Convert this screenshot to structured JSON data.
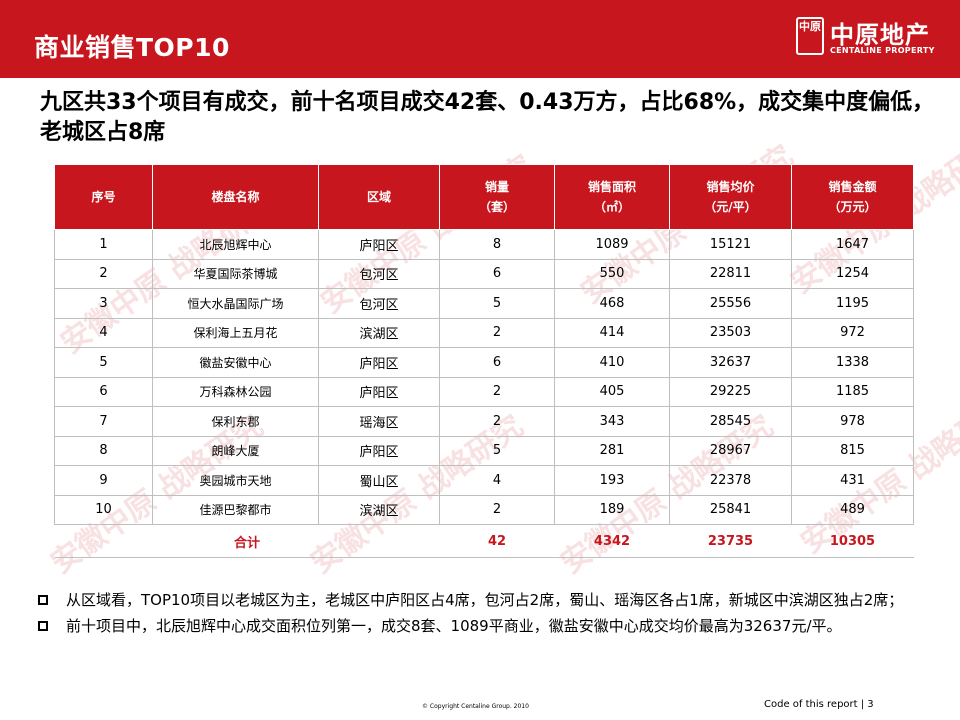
{
  "header": {
    "title": "商业销售TOP10",
    "logo_mark": "中原",
    "logo_text": "中原地产",
    "logo_sub": "CENTALINE PROPERTY"
  },
  "headline": "九区共33个项目有成交，前十名项目成交42套、0.43万方，占比68%，成交集中度偏低，老城区占8席",
  "table": {
    "headers": {
      "no": "序号",
      "name": "楼盘名称",
      "district": "区域",
      "qty_line1": "销量",
      "qty_line2": "（套）",
      "area_line1": "销售面积",
      "area_line2": "（㎡）",
      "price_line1": "销售均价",
      "price_line2": "（元/平）",
      "amount_line1": "销售金额",
      "amount_line2": "（万元）"
    },
    "rows": [
      {
        "no": "1",
        "name": "北辰旭辉中心",
        "district": "庐阳区",
        "qty": "8",
        "area": "1089",
        "price": "15121",
        "amount": "1647"
      },
      {
        "no": "2",
        "name": "华夏国际茶博城",
        "district": "包河区",
        "qty": "6",
        "area": "550",
        "price": "22811",
        "amount": "1254"
      },
      {
        "no": "3",
        "name": "恒大水晶国际广场",
        "district": "包河区",
        "qty": "5",
        "area": "468",
        "price": "25556",
        "amount": "1195"
      },
      {
        "no": "4",
        "name": "保利海上五月花",
        "district": "滨湖区",
        "qty": "2",
        "area": "414",
        "price": "23503",
        "amount": "972"
      },
      {
        "no": "5",
        "name": "徽盐安徽中心",
        "district": "庐阳区",
        "qty": "6",
        "area": "410",
        "price": "32637",
        "amount": "1338"
      },
      {
        "no": "6",
        "name": "万科森林公园",
        "district": "庐阳区",
        "qty": "2",
        "area": "405",
        "price": "29225",
        "amount": "1185"
      },
      {
        "no": "7",
        "name": "保利东郡",
        "district": "瑶海区",
        "qty": "2",
        "area": "343",
        "price": "28545",
        "amount": "978"
      },
      {
        "no": "8",
        "name": "朗峰大厦",
        "district": "庐阳区",
        "qty": "5",
        "area": "281",
        "price": "28967",
        "amount": "815"
      },
      {
        "no": "9",
        "name": "奥园城市天地",
        "district": "蜀山区",
        "qty": "4",
        "area": "193",
        "price": "22378",
        "amount": "431"
      },
      {
        "no": "10",
        "name": "佳源巴黎都市",
        "district": "滨湖区",
        "qty": "2",
        "area": "189",
        "price": "25841",
        "amount": "489"
      }
    ],
    "total": {
      "label": "合计",
      "qty": "42",
      "area": "4342",
      "price": "23735",
      "amount": "10305"
    }
  },
  "watermark_text": "安徽中原 战略研究",
  "bullets": [
    "从区域看，TOP10项目以老城区为主，老城区中庐阳区占4席，包河占2席，蜀山、瑶海区各占1席，新城区中滨湖区独占2席；",
    "前十项目中，北辰旭辉中心成交面积位列第一，成交8套、1089平商业，徽盐安徽中心成交均价最高为32637元/平。"
  ],
  "footer": {
    "copyright": "© Copyright  Centaline Group. 2010",
    "report": "Code of this report  |  3"
  },
  "colors": {
    "accent": "#c8161e"
  }
}
